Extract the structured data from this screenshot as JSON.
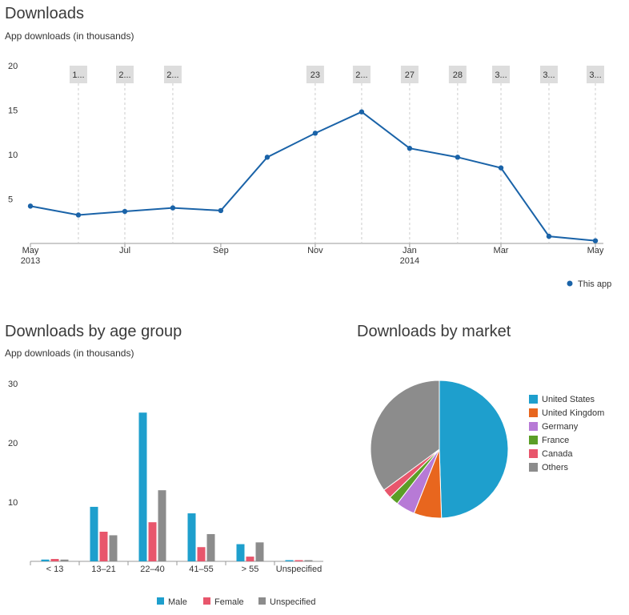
{
  "colors": {
    "line": "#1a63a8",
    "male": "#1e9fcd",
    "female": "#e8566c",
    "unspecified": "#8c8c8c",
    "grid": "#cccccc",
    "annotation_bg": "#dddddd",
    "axis": "#999999"
  },
  "downloads": {
    "title": "Downloads",
    "subtitle": "App downloads (in thousands)",
    "legend_label": "This app"
  },
  "age": {
    "title": "Downloads by age group",
    "subtitle": "App downloads (in thousands)",
    "legend": [
      "Male",
      "Female",
      "Unspecified"
    ]
  },
  "market": {
    "title": "Downloads by market"
  },
  "chart_data": [
    {
      "type": "line",
      "title": "Downloads",
      "subtitle": "App downloads (in thousands)",
      "x": [
        "2013-05-01",
        "2013-06-01",
        "2013-07-01",
        "2013-08-01",
        "2013-09-01",
        "2013-10-01",
        "2013-11-01",
        "2013-12-01",
        "2014-01-01",
        "2014-02-01",
        "2014-03-01",
        "2014-04-01",
        "2014-05-01"
      ],
      "series": [
        {
          "name": "This app",
          "values": [
            4.2,
            3.2,
            3.6,
            4.0,
            3.7,
            9.7,
            12.4,
            14.8,
            10.7,
            9.7,
            8.5,
            0.8,
            0.3
          ]
        }
      ],
      "ylim": [
        0,
        20
      ],
      "yticks": [
        5,
        10,
        15,
        20
      ],
      "xticks": [
        {
          "x": "2013-05-01",
          "label": "May",
          "sub": "2013"
        },
        {
          "x": "2013-07-01",
          "label": "Jul",
          "sub": ""
        },
        {
          "x": "2013-09-01",
          "label": "Sep",
          "sub": ""
        },
        {
          "x": "2013-11-01",
          "label": "Nov",
          "sub": ""
        },
        {
          "x": "2014-01-01",
          "label": "Jan",
          "sub": "2014"
        },
        {
          "x": "2014-03-01",
          "label": "Mar",
          "sub": ""
        },
        {
          "x": "2014-05-01",
          "label": "May",
          "sub": ""
        }
      ],
      "annotations": [
        {
          "x": "2013-06-01",
          "label": "1..."
        },
        {
          "x": "2013-07-01",
          "label": "2..."
        },
        {
          "x": "2013-08-01",
          "label": "2..."
        },
        {
          "x": "2013-11-01",
          "label": "23"
        },
        {
          "x": "2013-12-01",
          "label": "2..."
        },
        {
          "x": "2014-01-01",
          "label": "27"
        },
        {
          "x": "2014-02-01",
          "label": "28"
        },
        {
          "x": "2014-03-01",
          "label": "3..."
        },
        {
          "x": "2014-04-01",
          "label": "3..."
        },
        {
          "x": "2014-05-01",
          "label": "3..."
        }
      ],
      "legend": "bottom-right",
      "grid": false
    },
    {
      "type": "bar",
      "title": "Downloads by age group",
      "subtitle": "App downloads (in thousands)",
      "categories": [
        "< 13",
        "13–21",
        "22–40",
        "41–55",
        "> 55",
        "Unspecified"
      ],
      "series": [
        {
          "name": "Male",
          "values": [
            0.3,
            9.2,
            25.1,
            8.1,
            2.9,
            0.2
          ]
        },
        {
          "name": "Female",
          "values": [
            0.4,
            5.0,
            6.6,
            2.4,
            0.8,
            0.2
          ]
        },
        {
          "name": "Unspecified",
          "values": [
            0.3,
            4.4,
            12.0,
            4.6,
            3.2,
            0.2
          ]
        }
      ],
      "ylim": [
        0,
        30
      ],
      "yticks": [
        10,
        20,
        30
      ],
      "legend": "bottom",
      "grid": false
    },
    {
      "type": "pie",
      "title": "Downloads by market",
      "labels": [
        "United States",
        "United Kingdom",
        "Germany",
        "France",
        "Canada",
        "Others"
      ],
      "values": [
        49.5,
        6.5,
        4.5,
        2.2,
        2.2,
        35.1
      ],
      "colors": [
        "#1e9fcd",
        "#e8661e",
        "#b77ad6",
        "#5b9e26",
        "#e8566c",
        "#8c8c8c"
      ],
      "legend": "right"
    }
  ]
}
